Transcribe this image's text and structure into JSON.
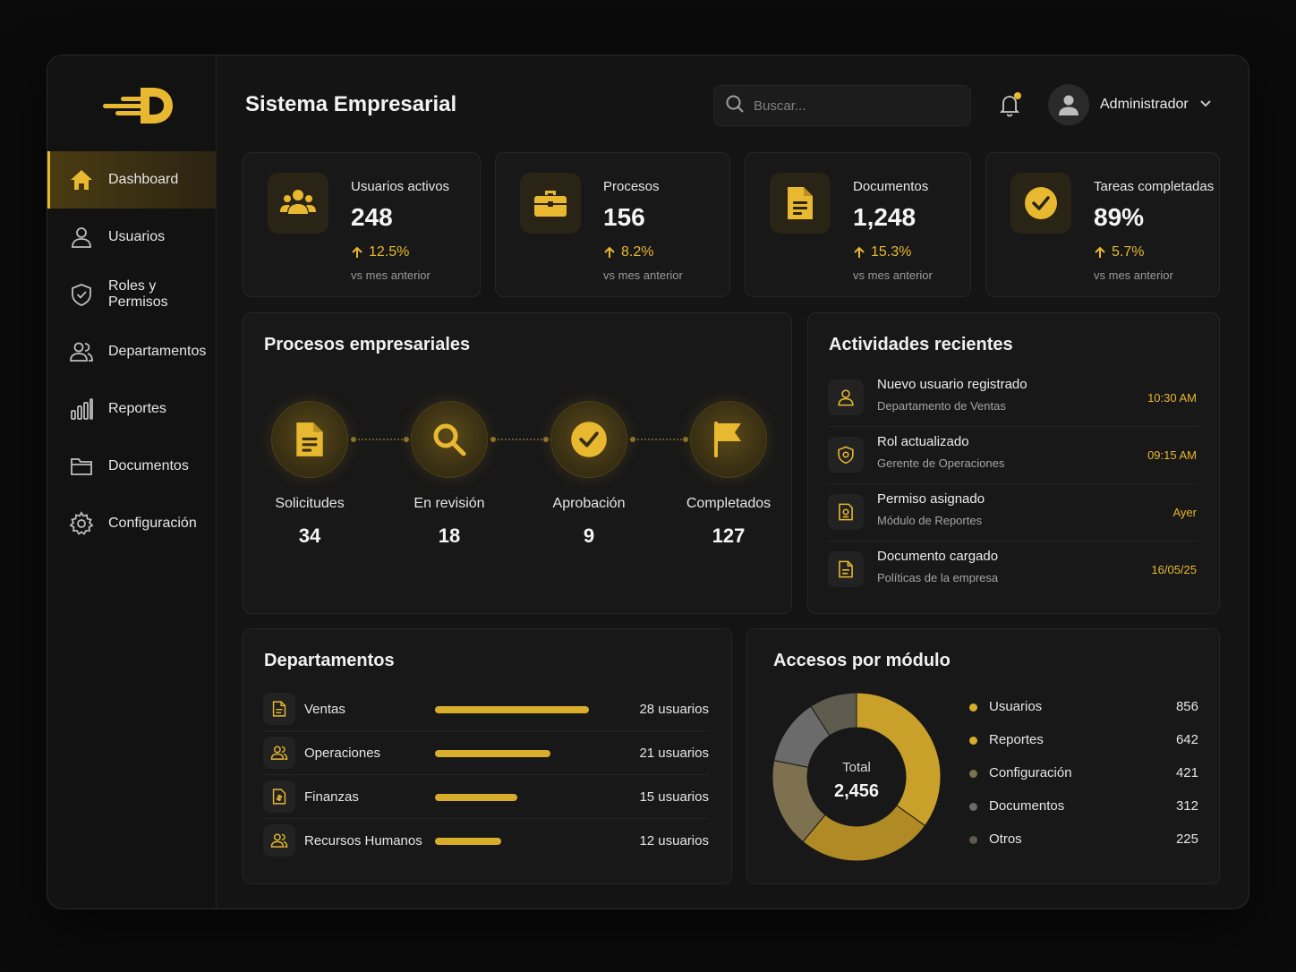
{
  "app": {
    "title": "Sistema Empresarial"
  },
  "colors": {
    "accent": "#e8b830",
    "background": "#141414",
    "card": "#181818"
  },
  "sidebar": {
    "logo_icon": "brand-d-logo",
    "items": [
      {
        "label": "Dashboard",
        "icon": "home-icon",
        "active": true
      },
      {
        "label": "Usuarios",
        "icon": "user-icon",
        "active": false
      },
      {
        "label": "Roles y Permisos",
        "icon": "shield-icon",
        "active": false
      },
      {
        "label": "Departamentos",
        "icon": "users-icon",
        "active": false
      },
      {
        "label": "Reportes",
        "icon": "bar-chart-icon",
        "active": false
      },
      {
        "label": "Documentos",
        "icon": "folder-icon",
        "active": false
      },
      {
        "label": "Configuración",
        "icon": "gear-icon",
        "active": false
      }
    ]
  },
  "header": {
    "search_placeholder": "Buscar...",
    "user_name": "Administrador",
    "notifications_unread": true
  },
  "stats": [
    {
      "label": "Usuarios activos",
      "value": "248",
      "change": "12.5%",
      "note": "vs mes anterior",
      "icon": "team-icon"
    },
    {
      "label": "Procesos",
      "value": "156",
      "change": "8.2%",
      "note": "vs mes anterior",
      "icon": "briefcase-icon"
    },
    {
      "label": "Documentos",
      "value": "1,248",
      "change": "15.3%",
      "note": "vs mes anterior",
      "icon": "document-icon"
    },
    {
      "label": "Tareas completadas",
      "value": "89%",
      "change": "5.7%",
      "note": "vs mes anterior",
      "icon": "check-circle-icon"
    }
  ],
  "processes": {
    "title": "Procesos empresariales",
    "steps": [
      {
        "label": "Solicitudes",
        "count": "34",
        "icon": "document-icon"
      },
      {
        "label": "En revisión",
        "count": "18",
        "icon": "magnifier-icon"
      },
      {
        "label": "Aprobación",
        "count": "9",
        "icon": "check-circle-icon"
      },
      {
        "label": "Completados",
        "count": "127",
        "icon": "flag-icon"
      }
    ]
  },
  "activities": {
    "title": "Actividades recientes",
    "items": [
      {
        "title": "Nuevo usuario registrado",
        "subtitle": "Departamento de Ventas",
        "time": "10:30 AM",
        "icon": "user-icon"
      },
      {
        "title": "Rol actualizado",
        "subtitle": "Gerente de Operaciones",
        "time": "09:15 AM",
        "icon": "shield-gear-icon"
      },
      {
        "title": "Permiso asignado",
        "subtitle": "Módulo de Reportes",
        "time": "Ayer",
        "icon": "lock-doc-icon"
      },
      {
        "title": "Documento cargado",
        "subtitle": "Políticas de la empresa",
        "time": "16/05/25",
        "icon": "document-icon"
      }
    ]
  },
  "departments": {
    "title": "Departamentos",
    "items": [
      {
        "name": "Ventas",
        "count_label": "28 usuarios",
        "count": 28,
        "icon": "document-icon"
      },
      {
        "name": "Operaciones",
        "count_label": "21 usuarios",
        "count": 21,
        "icon": "users-icon"
      },
      {
        "name": "Finanzas",
        "count_label": "15 usuarios",
        "count": 15,
        "icon": "finance-icon"
      },
      {
        "name": "Recursos Humanos",
        "count_label": "12 usuarios",
        "count": 12,
        "icon": "users-icon"
      }
    ]
  },
  "modules": {
    "title": "Accesos por módulo",
    "total_label": "Total",
    "total_value": "2,456",
    "items": [
      {
        "name": "Usuarios",
        "value": "856",
        "color": "#d9ad2c"
      },
      {
        "name": "Reportes",
        "value": "642",
        "color": "#d9ad2c"
      },
      {
        "name": "Configuración",
        "value": "421",
        "color": "#7d7150"
      },
      {
        "name": "Documentos",
        "value": "312",
        "color": "#6b6b6b"
      },
      {
        "name": "Otros",
        "value": "225",
        "color": "#5e5a4e"
      }
    ]
  },
  "chart_data": {
    "type": "pie",
    "categories": [
      "Usuarios",
      "Reportes",
      "Configuración",
      "Documentos",
      "Otros"
    ],
    "values": [
      856,
      642,
      421,
      312,
      225
    ],
    "title": "Accesos por módulo"
  }
}
